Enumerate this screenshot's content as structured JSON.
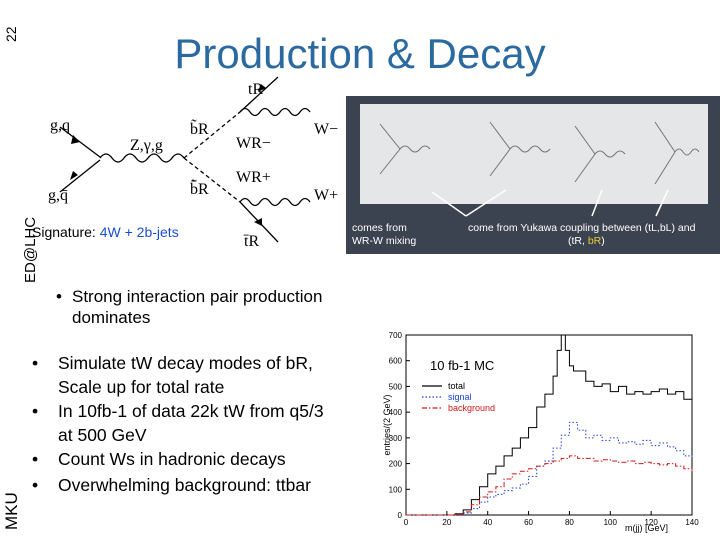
{
  "slide": {
    "number": "22",
    "title": "Production & Decay",
    "side_label_top": "ED@LHC",
    "side_label_bottom": "MKU"
  },
  "diagram": {
    "labels": {
      "gq_top": "g,q",
      "gq_bottom": "g,q̄",
      "boson": "Z,γ,g",
      "bR_top": "b̃R",
      "bR_bottom": "b̃̄R",
      "tR_top": "tR",
      "tR_bottom": "t̄R",
      "WR_minus": "WR−",
      "WR_plus": "WR+",
      "W_minus": "W−",
      "W_plus": "W+"
    }
  },
  "signature": {
    "prefix": "Signature: ",
    "value": "4W + 2b-jets"
  },
  "photo": {
    "caption_left_1": "comes from",
    "caption_left_2": "WR-W mixing",
    "caption_right_1": "come from Yukawa coupling between (tL,bL) and",
    "caption_right_2a": "(tR, ",
    "caption_right_2b": "bR",
    "caption_right_2c": ")"
  },
  "bullets": {
    "strong_line1": "Strong interaction pair production",
    "strong_line2": "dominates",
    "items": [
      {
        "line1": "Simulate tW decay modes of bR,",
        "line2": "Scale up for total rate"
      },
      {
        "line1": "In 10fb-1 of data 22k tW from q5/3",
        "line2": "at 500 GeV"
      },
      {
        "line1": "Count Ws in hadronic decays",
        "line2": ""
      },
      {
        "line1": "Overwhelming background: ttbar",
        "line2": ""
      }
    ]
  },
  "colors": {
    "title": "#2a6aa0",
    "accent_text": "#1a4fd0",
    "total": "#000000",
    "signal": "#1a3fd8",
    "background": "#d01818"
  },
  "chart_data": {
    "type": "line",
    "title": "10 fb-1 MC",
    "xlabel": "m(jj) [GeV]",
    "ylabel": "entries/(2 GeV)",
    "xlim": [
      0,
      140
    ],
    "ylim": [
      0,
      700
    ],
    "xticks": [
      0,
      20,
      40,
      60,
      80,
      100,
      120,
      140
    ],
    "yticks": [
      0,
      100,
      200,
      300,
      400,
      500,
      600,
      700
    ],
    "legend": "top-right",
    "series": [
      {
        "name": "total",
        "style": "solid",
        "x": [
          0,
          10,
          20,
          24,
          28,
          32,
          36,
          40,
          44,
          48,
          52,
          56,
          60,
          64,
          68,
          72,
          74,
          76,
          78,
          80,
          82,
          84,
          88,
          92,
          96,
          100,
          104,
          108,
          112,
          116,
          120,
          124,
          128,
          132,
          136,
          140
        ],
        "y": [
          0,
          0,
          0,
          5,
          20,
          60,
          110,
          160,
          190,
          230,
          260,
          300,
          340,
          420,
          470,
          540,
          640,
          700,
          640,
          580,
          560,
          560,
          520,
          500,
          510,
          480,
          500,
          470,
          480,
          470,
          480,
          490,
          470,
          480,
          450,
          420
        ]
      },
      {
        "name": "signal",
        "style": "dotted",
        "x": [
          0,
          10,
          20,
          24,
          28,
          32,
          36,
          40,
          44,
          48,
          52,
          56,
          60,
          64,
          68,
          72,
          76,
          80,
          84,
          88,
          92,
          96,
          100,
          104,
          108,
          112,
          116,
          120,
          124,
          128,
          132,
          136,
          140
        ],
        "y": [
          0,
          0,
          0,
          2,
          8,
          25,
          50,
          70,
          80,
          95,
          105,
          120,
          150,
          190,
          210,
          260,
          310,
          360,
          330,
          300,
          310,
          290,
          300,
          280,
          285,
          275,
          290,
          270,
          280,
          265,
          250,
          230,
          220
        ]
      },
      {
        "name": "background",
        "style": "dashdot",
        "x": [
          0,
          10,
          20,
          24,
          28,
          32,
          36,
          40,
          44,
          48,
          52,
          56,
          60,
          64,
          68,
          72,
          76,
          80,
          84,
          88,
          92,
          96,
          100,
          104,
          108,
          112,
          116,
          120,
          124,
          128,
          132,
          136,
          140
        ],
        "y": [
          0,
          0,
          0,
          3,
          12,
          40,
          70,
          90,
          110,
          140,
          160,
          170,
          180,
          190,
          200,
          210,
          220,
          230,
          220,
          220,
          210,
          215,
          210,
          205,
          210,
          200,
          205,
          200,
          195,
          200,
          190,
          180,
          170
        ]
      }
    ]
  }
}
